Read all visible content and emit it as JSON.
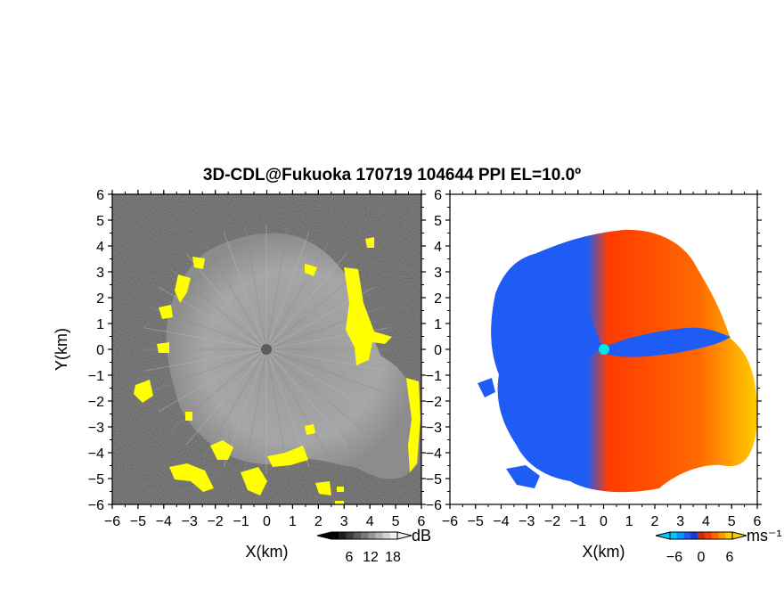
{
  "title": "3D-CDL@Fukuoka 170719 104644 PPI EL=10.0º",
  "colors": {
    "background_noise": "#2a2a2a",
    "echo_gray": "#a0a0a0",
    "high_snr": "#ffff00",
    "vel_negative": "#1f5cf5",
    "vel_positive": "#ff3a00",
    "vel_high": "#ffcc00",
    "radar_site_marker": "#00e5e5"
  },
  "chart_data": [
    {
      "type": "heatmap",
      "panel": "snr",
      "xlabel": "X(km)",
      "ylabel": "Y(km)",
      "xlim": [
        -6,
        6
      ],
      "ylim": [
        -6,
        6
      ],
      "xticks": [
        -6,
        -5,
        -4,
        -3,
        -2,
        -1,
        0,
        1,
        2,
        3,
        4,
        5,
        6
      ],
      "yticks": [
        6,
        5,
        4,
        3,
        2,
        1,
        0,
        -1,
        -2,
        -3,
        -4,
        -5,
        -6
      ],
      "echo_radius_km": 4.4,
      "colorbar": {
        "unit": "dB",
        "ticks": [
          6,
          12,
          18
        ],
        "colors": [
          "#000000",
          "#1e1e1e",
          "#3c3c3c",
          "#5a5a5a",
          "#787878",
          "#969696",
          "#b4b4b4",
          "#d2d2d2",
          "#f0f0f0"
        ]
      }
    },
    {
      "type": "heatmap",
      "panel": "doppler_velocity",
      "xlabel": "X(km)",
      "ylabel": "",
      "xlim": [
        -6,
        6
      ],
      "ylim": [
        -6,
        6
      ],
      "xticks": [
        -6,
        -5,
        -4,
        -3,
        -2,
        -1,
        0,
        1,
        2,
        3,
        4,
        5,
        6
      ],
      "yticks": [
        6,
        5,
        4,
        3,
        2,
        1,
        0,
        -1,
        -2,
        -3,
        -4,
        -5,
        -6
      ],
      "colorbar": {
        "unit": "ms⁻¹",
        "ticks": [
          -6,
          0,
          6
        ],
        "colors": [
          "#00c8ff",
          "#0096ff",
          "#1f5cf5",
          "#1e3cc8",
          "#c83200",
          "#ff3a00",
          "#ff6a00",
          "#ff9a00",
          "#ffcc00"
        ]
      }
    }
  ]
}
